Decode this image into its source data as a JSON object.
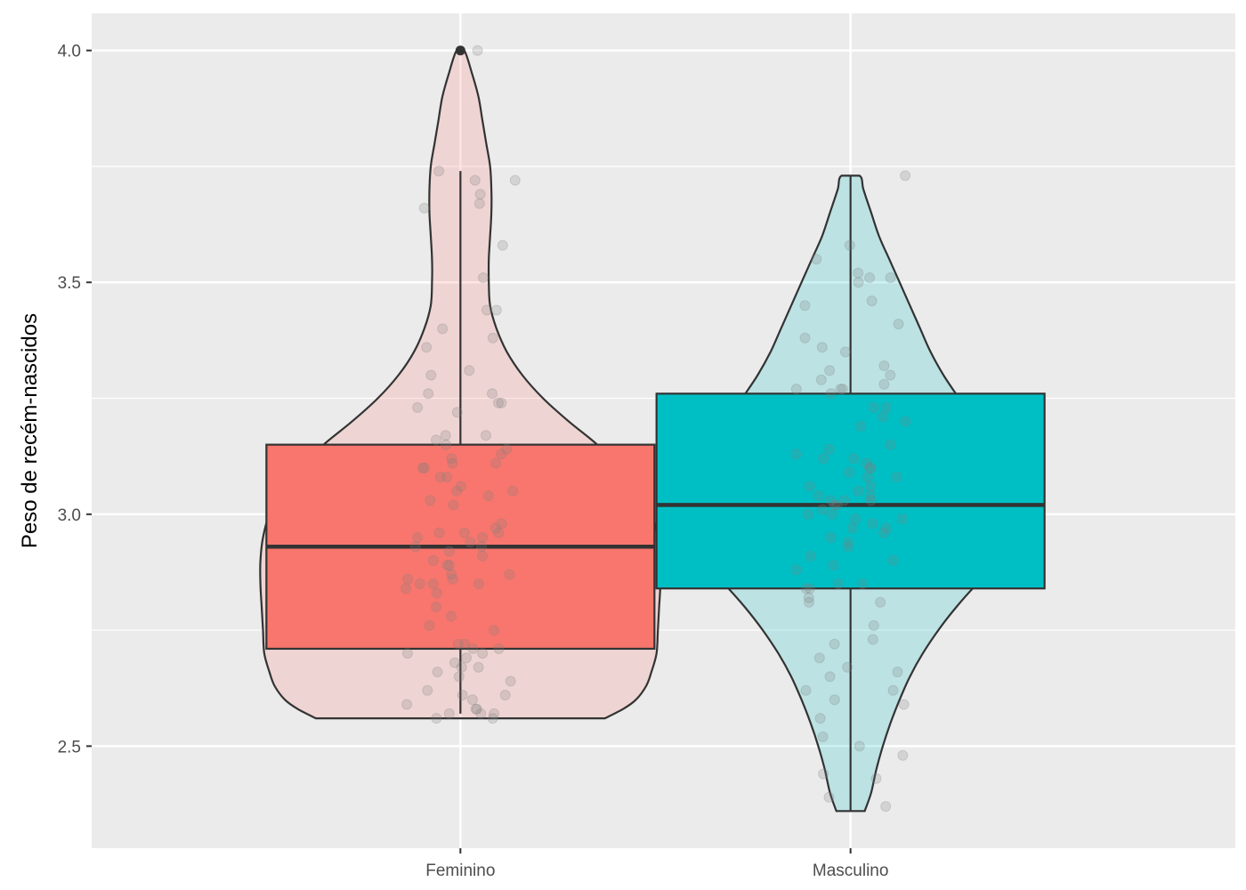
{
  "chart_data": {
    "type": "violin-box",
    "title": "",
    "xlabel": "",
    "ylabel": "Peso de recém-nascidos",
    "ylim": [
      2.28,
      4.08
    ],
    "y_ticks": [
      2.5,
      3.0,
      3.5,
      4.0
    ],
    "y_tick_labels": [
      "2.5",
      "3.0",
      "3.5",
      "4.0"
    ],
    "categories": [
      "Feminino",
      "Masculino"
    ],
    "grid": true,
    "legend": "none",
    "colors": {
      "panel": "#ebebeb",
      "grid": "#ffffff",
      "outline": "#333333",
      "Feminino": "#f8766d",
      "Masculino": "#00bfc4",
      "points": "#7f7f7f"
    },
    "groups": [
      {
        "name": "Feminino",
        "box": {
          "whisker_low": 2.57,
          "q1": 2.71,
          "median": 2.93,
          "q3": 3.15,
          "whisker_high": 3.74,
          "outliers": [
            4.0
          ]
        },
        "violin_profile": [
          [
            2.56,
            0.56
          ],
          [
            2.58,
            0.63
          ],
          [
            2.6,
            0.68
          ],
          [
            2.63,
            0.72
          ],
          [
            2.66,
            0.74
          ],
          [
            2.7,
            0.76
          ],
          [
            2.75,
            0.765
          ],
          [
            2.8,
            0.77
          ],
          [
            2.85,
            0.775
          ],
          [
            2.9,
            0.775
          ],
          [
            2.95,
            0.765
          ],
          [
            3.0,
            0.74
          ],
          [
            3.05,
            0.69
          ],
          [
            3.1,
            0.62
          ],
          [
            3.15,
            0.53
          ],
          [
            3.2,
            0.42
          ],
          [
            3.25,
            0.32
          ],
          [
            3.3,
            0.24
          ],
          [
            3.35,
            0.18
          ],
          [
            3.4,
            0.14
          ],
          [
            3.45,
            0.115
          ],
          [
            3.5,
            0.11
          ],
          [
            3.55,
            0.11
          ],
          [
            3.6,
            0.115
          ],
          [
            3.65,
            0.12
          ],
          [
            3.7,
            0.12
          ],
          [
            3.75,
            0.115
          ],
          [
            3.8,
            0.1
          ],
          [
            3.85,
            0.085
          ],
          [
            3.9,
            0.07
          ],
          [
            3.95,
            0.045
          ],
          [
            4.0,
            0.015
          ]
        ],
        "points": [
          4.0,
          3.74,
          3.72,
          3.72,
          3.69,
          3.67,
          3.66,
          3.58,
          3.51,
          3.44,
          3.44,
          3.4,
          3.38,
          3.36,
          3.31,
          3.3,
          3.26,
          3.26,
          3.24,
          3.24,
          3.23,
          3.22,
          3.17,
          3.17,
          3.16,
          3.15,
          3.14,
          3.13,
          3.12,
          3.11,
          3.11,
          3.1,
          3.1,
          3.08,
          3.08,
          3.06,
          3.05,
          3.05,
          3.04,
          3.03,
          3.02,
          2.98,
          2.97,
          2.96,
          2.96,
          2.96,
          2.95,
          2.95,
          2.94,
          2.93,
          2.93,
          2.92,
          2.91,
          2.9,
          2.89,
          2.89,
          2.87,
          2.87,
          2.86,
          2.86,
          2.85,
          2.85,
          2.85,
          2.84,
          2.83,
          2.8,
          2.78,
          2.76,
          2.75,
          2.72,
          2.72,
          2.71,
          2.71,
          2.7,
          2.7,
          2.69,
          2.68,
          2.67,
          2.67,
          2.66,
          2.65,
          2.64,
          2.62,
          2.61,
          2.61,
          2.6,
          2.59,
          2.58,
          2.58,
          2.57,
          2.57,
          2.57,
          2.56,
          2.56
        ]
      },
      {
        "name": "Masculino",
        "box": {
          "whisker_low": 2.36,
          "q1": 2.84,
          "median": 3.02,
          "q3": 3.26,
          "whisker_high": 3.73,
          "outliers": []
        },
        "violin_profile": [
          [
            2.36,
            0.055
          ],
          [
            2.4,
            0.08
          ],
          [
            2.45,
            0.1
          ],
          [
            2.5,
            0.125
          ],
          [
            2.55,
            0.155
          ],
          [
            2.6,
            0.19
          ],
          [
            2.65,
            0.23
          ],
          [
            2.7,
            0.28
          ],
          [
            2.75,
            0.34
          ],
          [
            2.8,
            0.41
          ],
          [
            2.85,
            0.49
          ],
          [
            2.9,
            0.58
          ],
          [
            2.95,
            0.64
          ],
          [
            3.0,
            0.67
          ],
          [
            3.05,
            0.655
          ],
          [
            3.1,
            0.61
          ],
          [
            3.15,
            0.55
          ],
          [
            3.2,
            0.48
          ],
          [
            3.25,
            0.42
          ],
          [
            3.3,
            0.36
          ],
          [
            3.35,
            0.31
          ],
          [
            3.4,
            0.27
          ],
          [
            3.45,
            0.23
          ],
          [
            3.5,
            0.19
          ],
          [
            3.55,
            0.15
          ],
          [
            3.6,
            0.11
          ],
          [
            3.65,
            0.08
          ],
          [
            3.7,
            0.05
          ],
          [
            3.73,
            0.035
          ]
        ],
        "points": [
          3.73,
          3.58,
          3.55,
          3.52,
          3.51,
          3.51,
          3.5,
          3.46,
          3.45,
          3.41,
          3.38,
          3.36,
          3.35,
          3.32,
          3.31,
          3.3,
          3.29,
          3.28,
          3.27,
          3.27,
          3.27,
          3.26,
          3.23,
          3.23,
          3.21,
          3.2,
          3.19,
          3.15,
          3.14,
          3.13,
          3.12,
          3.12,
          3.11,
          3.1,
          3.1,
          3.09,
          3.08,
          3.08,
          3.06,
          3.06,
          3.05,
          3.04,
          3.04,
          3.03,
          3.03,
          3.03,
          3.02,
          3.02,
          3.01,
          3.0,
          3.0,
          2.99,
          2.99,
          2.98,
          2.97,
          2.97,
          2.96,
          2.95,
          2.94,
          2.93,
          2.91,
          2.9,
          2.89,
          2.88,
          2.85,
          2.85,
          2.84,
          2.84,
          2.82,
          2.81,
          2.81,
          2.76,
          2.73,
          2.72,
          2.69,
          2.67,
          2.66,
          2.65,
          2.62,
          2.62,
          2.6,
          2.59,
          2.56,
          2.52,
          2.5,
          2.48,
          2.44,
          2.43,
          2.39,
          2.37
        ]
      }
    ]
  }
}
